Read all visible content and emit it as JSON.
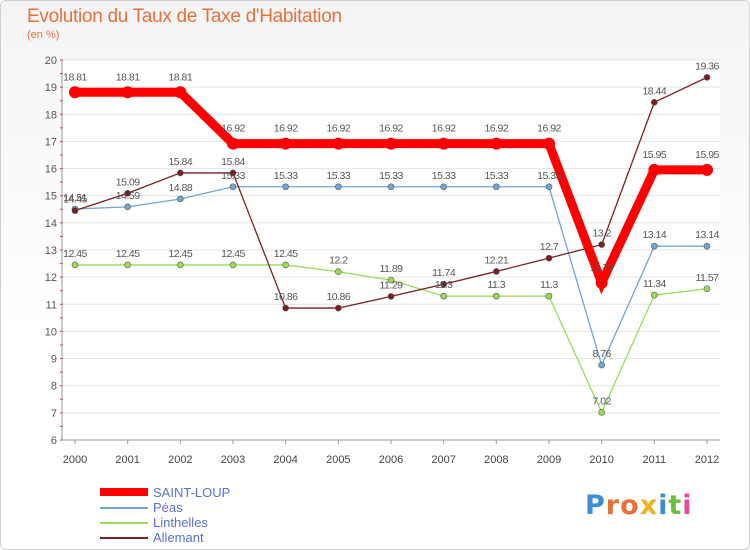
{
  "title": "Evolution du Taux de Taxe d'Habitation",
  "subtitle": "(en %)",
  "logo_text": "Proxiti",
  "colors": {
    "title": "#e8703a",
    "legend_text": "#5a6fd8",
    "saint_loup": "#ff0000",
    "peas": "#6fa6d6",
    "linthelles": "#99dd55",
    "allemant": "#7a1f1f"
  },
  "chart_data": {
    "type": "line",
    "title": "Evolution du Taux de Taxe d'Habitation",
    "ylabel": "(en %)",
    "xlabel": "",
    "ylim": [
      6,
      20
    ],
    "yticks": [
      6,
      7,
      8,
      9,
      10,
      11,
      12,
      13,
      14,
      15,
      16,
      17,
      18,
      19,
      20
    ],
    "x": [
      2000,
      2001,
      2002,
      2003,
      2004,
      2005,
      2006,
      2007,
      2008,
      2009,
      2010,
      2011,
      2012
    ],
    "grid": "horizontal",
    "legend_position": "bottom-left",
    "series": [
      {
        "name": "SAINT-LOUP",
        "key": "saint_loup",
        "values": [
          18.81,
          18.81,
          18.81,
          16.92,
          16.92,
          16.92,
          16.92,
          16.92,
          16.92,
          16.92,
          11.79,
          15.95,
          15.95
        ],
        "labels": [
          "18.81",
          "18.81",
          "18.81",
          "16.92",
          "16.92",
          "16.92",
          "16.92",
          "16.92",
          "16.92",
          "16.92",
          "11.79",
          "15.95",
          "15.95"
        ]
      },
      {
        "name": "Péas",
        "key": "peas",
        "values": [
          14.51,
          14.59,
          14.88,
          15.33,
          15.33,
          15.33,
          15.33,
          15.33,
          15.33,
          15.33,
          8.76,
          13.14,
          13.14
        ],
        "labels": [
          "14.51",
          "14.59",
          "14.88",
          "15.33",
          "15.33",
          "15.33",
          "15.33",
          "15.33",
          "15.33",
          "15.33",
          "8.76",
          "13.14",
          "13.14"
        ]
      },
      {
        "name": "Linthelles",
        "key": "linthelles",
        "values": [
          12.45,
          12.45,
          12.45,
          12.45,
          12.45,
          12.2,
          11.89,
          11.3,
          11.3,
          11.3,
          7.02,
          11.34,
          11.57
        ],
        "labels": [
          "12.45",
          "12.45",
          "12.45",
          "12.45",
          "12.45",
          "12.2",
          "11.89",
          "11.3",
          "11.3",
          "11.3",
          "7.02",
          "11.34",
          "11.57"
        ]
      },
      {
        "name": "Allemant",
        "key": "allemant",
        "values": [
          14.45,
          15.09,
          15.84,
          15.84,
          10.86,
          10.86,
          11.29,
          11.74,
          12.21,
          12.7,
          13.2,
          18.44,
          19.36
        ],
        "labels": [
          "14.45",
          "15.09",
          "15.84",
          "15.84",
          "10.86",
          "10.86",
          "11.29",
          "11.74",
          "12.21",
          "12.7",
          "13.2",
          "18.44",
          "19.36"
        ]
      }
    ]
  }
}
